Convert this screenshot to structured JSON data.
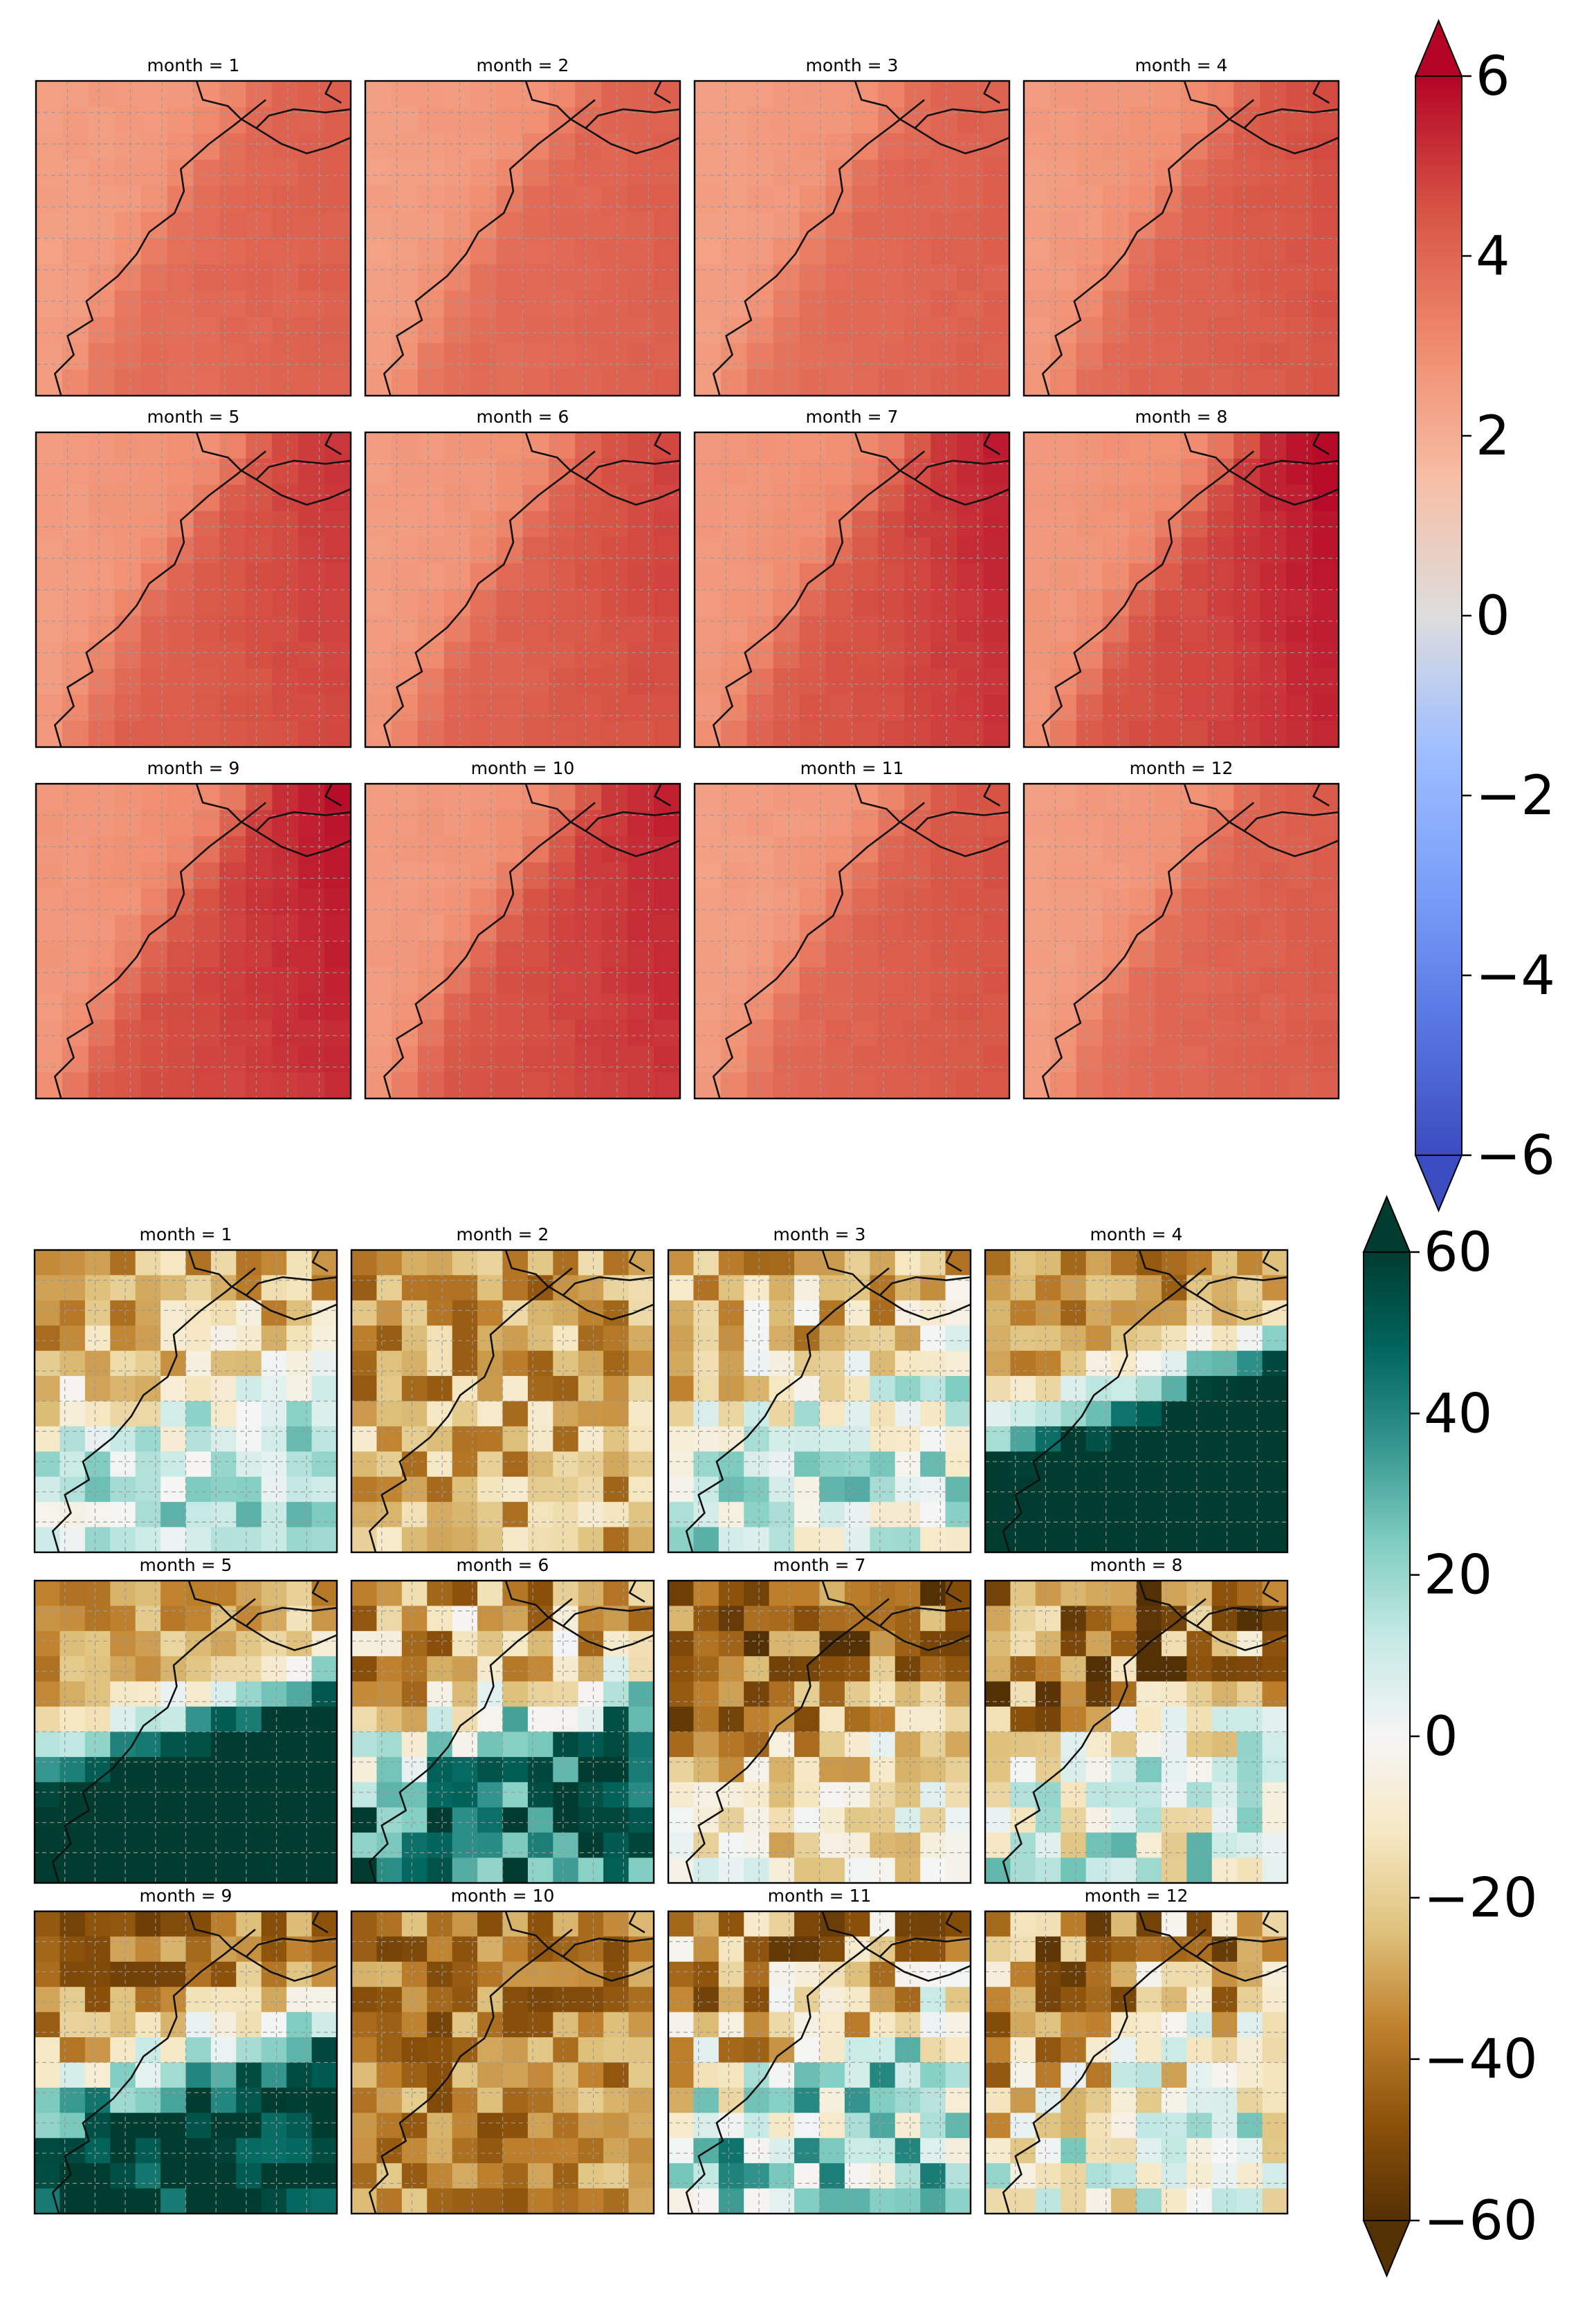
{
  "chart_data": [
    {
      "type": "heatmap",
      "title": "",
      "colormap": "coolwarm",
      "colorbar": {
        "min": -6,
        "max": 6,
        "ticks": [
          6,
          4,
          2,
          0,
          -2,
          -4,
          -6
        ],
        "extend": "both"
      },
      "grid": true,
      "panels": [
        {
          "title": "month = 1",
          "month": 1,
          "sea_value": 3.0,
          "land_value": 4.2,
          "peak": 0.0
        },
        {
          "title": "month = 2",
          "month": 2,
          "sea_value": 3.0,
          "land_value": 4.2,
          "peak": 0.0
        },
        {
          "title": "month = 3",
          "month": 3,
          "sea_value": 3.0,
          "land_value": 4.2,
          "peak": 0.0
        },
        {
          "title": "month = 4",
          "month": 4,
          "sea_value": 3.1,
          "land_value": 4.4,
          "peak": 0.3
        },
        {
          "title": "month = 5",
          "month": 5,
          "sea_value": 3.1,
          "land_value": 4.6,
          "peak": 0.6
        },
        {
          "title": "month = 6",
          "month": 6,
          "sea_value": 3.1,
          "land_value": 4.5,
          "peak": 0.4
        },
        {
          "title": "month = 7",
          "month": 7,
          "sea_value": 3.2,
          "land_value": 4.8,
          "peak": 0.9
        },
        {
          "title": "month = 8",
          "month": 8,
          "sea_value": 3.2,
          "land_value": 5.0,
          "peak": 1.1
        },
        {
          "title": "month = 9",
          "month": 9,
          "sea_value": 3.2,
          "land_value": 5.0,
          "peak": 0.9
        },
        {
          "title": "month = 10",
          "month": 10,
          "sea_value": 3.1,
          "land_value": 4.9,
          "peak": 0.7
        },
        {
          "title": "month = 11",
          "month": 11,
          "sea_value": 3.0,
          "land_value": 4.4,
          "peak": 0.2
        },
        {
          "title": "month = 12",
          "month": 12,
          "sea_value": 3.0,
          "land_value": 4.3,
          "peak": 0.0
        }
      ]
    },
    {
      "type": "heatmap",
      "title": "",
      "colormap": "BrBG",
      "colorbar": {
        "min": -60,
        "max": 60,
        "ticks": [
          60,
          40,
          20,
          0,
          -20,
          -40,
          -60
        ],
        "extend": "both"
      },
      "grid": true,
      "panels": [
        {
          "title": "month = 1",
          "month": 1,
          "north": -25,
          "south": 15,
          "noise": 18,
          "seed": 11
        },
        {
          "title": "month = 2",
          "month": 2,
          "north": -30,
          "south": -25,
          "noise": 18,
          "seed": 23
        },
        {
          "title": "month = 3",
          "month": 3,
          "north": -22,
          "south": 10,
          "noise": 22,
          "seed": 37
        },
        {
          "title": "month = 4",
          "month": 4,
          "north": -35,
          "south": 90,
          "noise": 12,
          "seed": 41
        },
        {
          "title": "month = 5",
          "month": 5,
          "north": -30,
          "south": 90,
          "noise": 12,
          "seed": 53
        },
        {
          "title": "month = 6",
          "month": 6,
          "north": -25,
          "south": 45,
          "noise": 25,
          "seed": 67
        },
        {
          "title": "month = 7",
          "month": 7,
          "north": -45,
          "south": -10,
          "noise": 20,
          "seed": 71
        },
        {
          "title": "month = 8",
          "month": 8,
          "north": -40,
          "south": 5,
          "noise": 28,
          "seed": 83
        },
        {
          "title": "month = 9",
          "month": 9,
          "north": -38,
          "south": 60,
          "noise": 18,
          "seed": 97
        },
        {
          "title": "month = 10",
          "month": 10,
          "north": -38,
          "south": -35,
          "noise": 15,
          "seed": 101
        },
        {
          "title": "month = 11",
          "month": 11,
          "north": -30,
          "south": 20,
          "noise": 28,
          "seed": 113
        },
        {
          "title": "month = 12",
          "month": 12,
          "north": -30,
          "south": 0,
          "noise": 28,
          "seed": 127
        }
      ]
    }
  ]
}
